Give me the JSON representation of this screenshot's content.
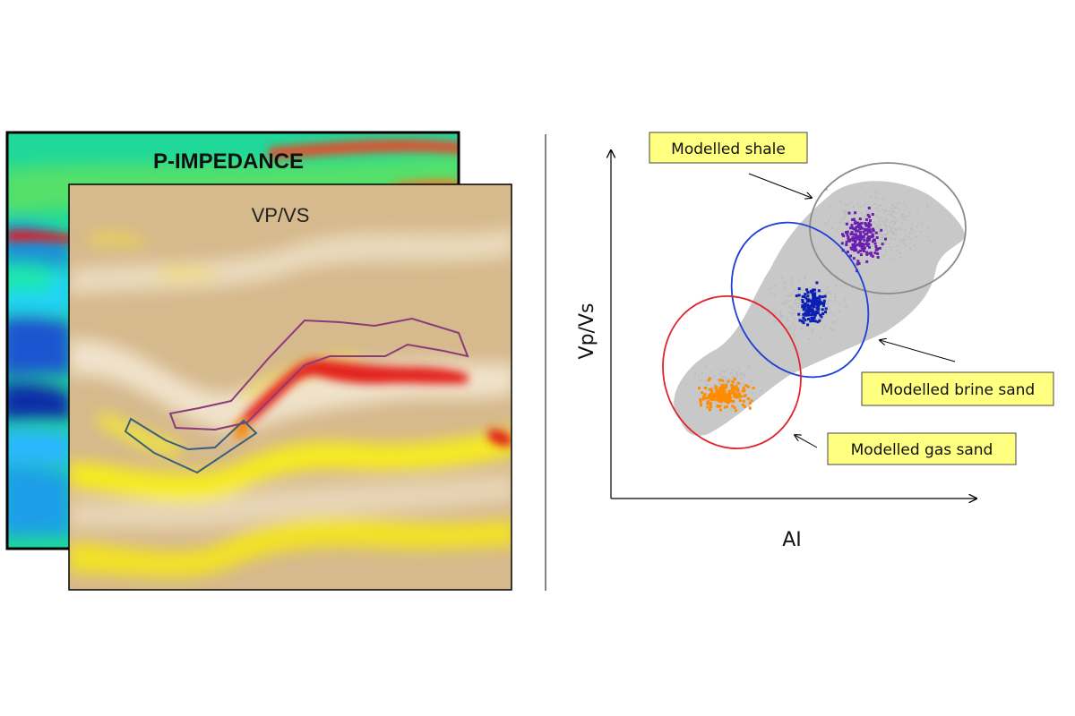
{
  "left_panel": {
    "back_title": "P-IMPEDANCE",
    "front_title": "VP/VS"
  },
  "crossplot": {
    "ylabel": "Vp/Vs",
    "xlabel": "AI",
    "callouts": {
      "shale": "Modelled shale",
      "brine": "Modelled brine sand",
      "gas": "Modelled gas sand"
    },
    "colors": {
      "shale_points": "#6a1fb0",
      "brine_points": "#0a1fb5",
      "gas_points": "#ff8c00",
      "background_points": "#c8c8c8",
      "shale_ellipse": "#8c8c8c",
      "brine_ellipse": "#1f3fd6",
      "gas_ellipse": "#e0232c",
      "callout_fill": "#ffff80"
    }
  }
}
